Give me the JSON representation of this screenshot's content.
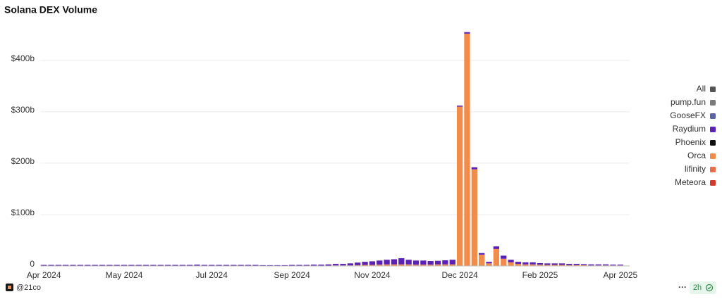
{
  "chart_data": {
    "type": "stacked-bar",
    "title": "Solana DEX Volume",
    "categories": [
      "Apr 2024",
      null,
      null,
      null,
      null,
      null,
      null,
      null,
      null,
      null,
      null,
      "May 2024",
      null,
      null,
      null,
      null,
      null,
      null,
      null,
      null,
      null,
      null,
      null,
      "Jul 2024",
      null,
      null,
      null,
      null,
      null,
      null,
      null,
      null,
      null,
      null,
      "Sep 2024",
      null,
      null,
      null,
      null,
      null,
      null,
      null,
      null,
      null,
      null,
      "Nov 2024",
      null,
      null,
      null,
      null,
      null,
      null,
      null,
      null,
      null,
      null,
      null,
      "Dec 2024",
      null,
      null,
      null,
      null,
      null,
      null,
      null,
      null,
      null,
      null,
      "Feb 2025",
      null,
      null,
      null,
      null,
      null,
      null,
      null,
      null,
      null,
      null,
      "Apr 2025"
    ],
    "series": [
      {
        "name": "All",
        "color": "#555555"
      },
      {
        "name": "pump.fun",
        "color": "#7a7a7a"
      },
      {
        "name": "GooseFX",
        "color": "#5b63a8"
      },
      {
        "name": "Raydium",
        "color": "#5b21b6",
        "values": [
          1.5,
          1.5,
          1.5,
          1.5,
          1.5,
          1.5,
          1.5,
          1.5,
          1.5,
          1.5,
          1.5,
          1.5,
          1.5,
          1.5,
          1.5,
          1.5,
          1.5,
          1.5,
          1.5,
          1.5,
          1.5,
          2,
          1.5,
          1.5,
          1.5,
          1.5,
          1.5,
          1.5,
          1.5,
          1.5,
          1,
          1,
          1,
          1,
          1.5,
          1.5,
          1.5,
          2,
          2,
          2.5,
          3,
          3,
          4,
          5,
          6,
          7,
          8,
          9,
          10,
          12,
          9,
          8,
          8,
          7,
          7,
          8,
          9,
          2,
          3,
          4,
          3,
          3,
          5,
          6,
          5,
          4,
          4,
          4,
          3,
          3,
          3,
          3,
          2.5,
          2.5,
          2,
          2,
          2,
          2,
          1.5,
          1.5
        ]
      },
      {
        "name": "Phoenix",
        "color": "#111111"
      },
      {
        "name": "Orca",
        "color": "#f28c4a",
        "values": [
          0.5,
          0.5,
          0.5,
          0.5,
          0.5,
          0.5,
          0.5,
          0.5,
          0.5,
          0.5,
          0.5,
          0.5,
          0.5,
          0.5,
          0.5,
          0.5,
          0.5,
          0.5,
          0.5,
          0.5,
          0.5,
          0.5,
          0.5,
          0.5,
          0.5,
          0.5,
          0.5,
          0.5,
          0.5,
          0.5,
          0.5,
          0.5,
          0.5,
          0.5,
          0.5,
          0.5,
          0.5,
          0.5,
          0.5,
          0.5,
          1,
          1,
          1,
          1.5,
          2,
          2,
          2.5,
          3,
          3,
          3,
          3,
          2.5,
          2.5,
          2.5,
          3,
          3,
          3,
          310,
          452,
          188,
          22,
          5,
          33,
          14,
          7,
          4,
          3,
          3,
          2.5,
          2,
          2,
          2,
          1.5,
          1.5,
          1.5,
          1,
          1,
          1,
          1,
          1
        ]
      },
      {
        "name": "lifinity",
        "color": "#e86e4e"
      },
      {
        "name": "Meteora",
        "color": "#d33a2c"
      }
    ],
    "ylim": [
      0,
      460
    ],
    "yticks": [
      0,
      {
        "value": 100,
        "label": "$100b"
      },
      {
        "value": 200,
        "label": "$200b"
      },
      {
        "value": 300,
        "label": "$300b"
      },
      {
        "value": 400,
        "label": "$400b"
      }
    ],
    "grid": true
  },
  "footer": {
    "author": "@21co",
    "updated": "2h",
    "menu": "···"
  }
}
